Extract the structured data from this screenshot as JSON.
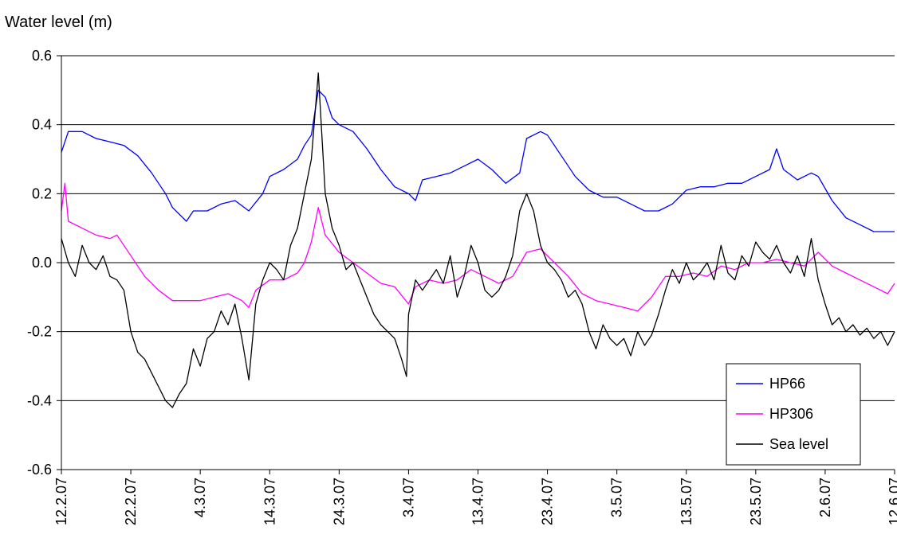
{
  "chart_data": {
    "type": "line",
    "title": "",
    "ylabel": "Water level (m)",
    "xlabel": "",
    "ylim": [
      -0.6,
      0.6
    ],
    "yticks": [
      0.6,
      0.4,
      0.2,
      0.0,
      -0.2,
      -0.4,
      -0.6
    ],
    "ytick_labels": [
      "0.6",
      "0.4",
      "0.2",
      "0.0",
      "-0.2",
      "-0.4",
      "-0.6"
    ],
    "xlim": [
      "2007-02-12",
      "2007-06-12"
    ],
    "xticks": [
      "2007-02-12",
      "2007-02-22",
      "2007-03-04",
      "2007-03-14",
      "2007-03-24",
      "2007-04-03",
      "2007-04-13",
      "2007-04-23",
      "2007-05-03",
      "2007-05-13",
      "2007-05-23",
      "2007-06-02",
      "2007-06-12"
    ],
    "xtick_labels": [
      "12.2.07",
      "22.2.07",
      "4.3.07",
      "14.3.07",
      "24.3.07",
      "3.4.07",
      "13.4.07",
      "23.4.07",
      "3.5.07",
      "13.5.07",
      "23.5.07",
      "2.6.07",
      "12.6.07"
    ],
    "grid": "horizontal",
    "legend_position": "bottom-right",
    "series": [
      {
        "name": "HP66",
        "color": "#0000ff",
        "points": [
          [
            "2007-02-12",
            0.32
          ],
          [
            "2007-02-13",
            0.38
          ],
          [
            "2007-02-15",
            0.38
          ],
          [
            "2007-02-17",
            0.36
          ],
          [
            "2007-02-19",
            0.35
          ],
          [
            "2007-02-21",
            0.34
          ],
          [
            "2007-02-23",
            0.31
          ],
          [
            "2007-02-25",
            0.26
          ],
          [
            "2007-02-27",
            0.2
          ],
          [
            "2007-02-28",
            0.16
          ],
          [
            "2007-03-02",
            0.12
          ],
          [
            "2007-03-03",
            0.15
          ],
          [
            "2007-03-05",
            0.15
          ],
          [
            "2007-03-07",
            0.17
          ],
          [
            "2007-03-09",
            0.18
          ],
          [
            "2007-03-11",
            0.15
          ],
          [
            "2007-03-13",
            0.2
          ],
          [
            "2007-03-14",
            0.25
          ],
          [
            "2007-03-16",
            0.27
          ],
          [
            "2007-03-18",
            0.3
          ],
          [
            "2007-03-19",
            0.34
          ],
          [
            "2007-03-20",
            0.37
          ],
          [
            "2007-03-21",
            0.5
          ],
          [
            "2007-03-22",
            0.48
          ],
          [
            "2007-03-23",
            0.42
          ],
          [
            "2007-03-24",
            0.4
          ],
          [
            "2007-03-26",
            0.38
          ],
          [
            "2007-03-28",
            0.33
          ],
          [
            "2007-03-30",
            0.27
          ],
          [
            "2007-04-01",
            0.22
          ],
          [
            "2007-04-03",
            0.2
          ],
          [
            "2007-04-04",
            0.18
          ],
          [
            "2007-04-05",
            0.24
          ],
          [
            "2007-04-07",
            0.25
          ],
          [
            "2007-04-09",
            0.26
          ],
          [
            "2007-04-11",
            0.28
          ],
          [
            "2007-04-13",
            0.3
          ],
          [
            "2007-04-15",
            0.27
          ],
          [
            "2007-04-17",
            0.23
          ],
          [
            "2007-04-19",
            0.26
          ],
          [
            "2007-04-20",
            0.36
          ],
          [
            "2007-04-22",
            0.38
          ],
          [
            "2007-04-23",
            0.37
          ],
          [
            "2007-04-25",
            0.31
          ],
          [
            "2007-04-27",
            0.25
          ],
          [
            "2007-04-29",
            0.21
          ],
          [
            "2007-05-01",
            0.19
          ],
          [
            "2007-05-03",
            0.19
          ],
          [
            "2007-05-05",
            0.17
          ],
          [
            "2007-05-07",
            0.15
          ],
          [
            "2007-05-09",
            0.15
          ],
          [
            "2007-05-11",
            0.17
          ],
          [
            "2007-05-13",
            0.21
          ],
          [
            "2007-05-15",
            0.22
          ],
          [
            "2007-05-17",
            0.22
          ],
          [
            "2007-05-19",
            0.23
          ],
          [
            "2007-05-21",
            0.23
          ],
          [
            "2007-05-23",
            0.25
          ],
          [
            "2007-05-25",
            0.27
          ],
          [
            "2007-05-26",
            0.33
          ],
          [
            "2007-05-27",
            0.27
          ],
          [
            "2007-05-29",
            0.24
          ],
          [
            "2007-05-31",
            0.26
          ],
          [
            "2007-06-01",
            0.25
          ],
          [
            "2007-06-03",
            0.18
          ],
          [
            "2007-06-05",
            0.13
          ],
          [
            "2007-06-07",
            0.11
          ],
          [
            "2007-06-09",
            0.09
          ],
          [
            "2007-06-12",
            0.09
          ]
        ]
      },
      {
        "name": "HP306",
        "color": "#ff00ff",
        "points": [
          [
            "2007-02-12",
            0.15
          ],
          [
            "2007-02-12.5",
            0.23
          ],
          [
            "2007-02-13",
            0.12
          ],
          [
            "2007-02-15",
            0.1
          ],
          [
            "2007-02-17",
            0.08
          ],
          [
            "2007-02-19",
            0.07
          ],
          [
            "2007-02-20",
            0.08
          ],
          [
            "2007-02-22",
            0.02
          ],
          [
            "2007-02-24",
            -0.04
          ],
          [
            "2007-02-26",
            -0.08
          ],
          [
            "2007-02-28",
            -0.11
          ],
          [
            "2007-03-02",
            -0.11
          ],
          [
            "2007-03-04",
            -0.11
          ],
          [
            "2007-03-06",
            -0.1
          ],
          [
            "2007-03-08",
            -0.09
          ],
          [
            "2007-03-10",
            -0.11
          ],
          [
            "2007-03-11",
            -0.13
          ],
          [
            "2007-03-12",
            -0.08
          ],
          [
            "2007-03-14",
            -0.05
          ],
          [
            "2007-03-16",
            -0.05
          ],
          [
            "2007-03-18",
            -0.03
          ],
          [
            "2007-03-19",
            0.0
          ],
          [
            "2007-03-20",
            0.06
          ],
          [
            "2007-03-21",
            0.16
          ],
          [
            "2007-03-22",
            0.08
          ],
          [
            "2007-03-24",
            0.03
          ],
          [
            "2007-03-26",
            0.0
          ],
          [
            "2007-03-28",
            -0.03
          ],
          [
            "2007-03-30",
            -0.06
          ],
          [
            "2007-04-01",
            -0.07
          ],
          [
            "2007-04-03",
            -0.12
          ],
          [
            "2007-04-04",
            -0.07
          ],
          [
            "2007-04-06",
            -0.05
          ],
          [
            "2007-04-08",
            -0.06
          ],
          [
            "2007-04-10",
            -0.05
          ],
          [
            "2007-04-12",
            -0.02
          ],
          [
            "2007-04-14",
            -0.04
          ],
          [
            "2007-04-16",
            -0.06
          ],
          [
            "2007-04-18",
            -0.04
          ],
          [
            "2007-04-20",
            0.03
          ],
          [
            "2007-04-22",
            0.04
          ],
          [
            "2007-04-24",
            0.0
          ],
          [
            "2007-04-26",
            -0.04
          ],
          [
            "2007-04-28",
            -0.09
          ],
          [
            "2007-04-30",
            -0.11
          ],
          [
            "2007-05-02",
            -0.12
          ],
          [
            "2007-05-04",
            -0.13
          ],
          [
            "2007-05-06",
            -0.14
          ],
          [
            "2007-05-08",
            -0.1
          ],
          [
            "2007-05-10",
            -0.04
          ],
          [
            "2007-05-12",
            -0.04
          ],
          [
            "2007-05-14",
            -0.03
          ],
          [
            "2007-05-16",
            -0.04
          ],
          [
            "2007-05-18",
            -0.01
          ],
          [
            "2007-05-20",
            -0.02
          ],
          [
            "2007-05-22",
            0.0
          ],
          [
            "2007-05-24",
            0.0
          ],
          [
            "2007-05-26",
            0.01
          ],
          [
            "2007-05-28",
            0.0
          ],
          [
            "2007-05-30",
            -0.01
          ],
          [
            "2007-06-01",
            0.03
          ],
          [
            "2007-06-03",
            -0.01
          ],
          [
            "2007-06-05",
            -0.03
          ],
          [
            "2007-06-07",
            -0.05
          ],
          [
            "2007-06-09",
            -0.07
          ],
          [
            "2007-06-11",
            -0.09
          ],
          [
            "2007-06-12",
            -0.06
          ]
        ]
      },
      {
        "name": "Sea level",
        "color": "#000000",
        "points": [
          [
            "2007-02-12",
            0.07
          ],
          [
            "2007-02-13",
            0.0
          ],
          [
            "2007-02-14",
            -0.04
          ],
          [
            "2007-02-15",
            0.05
          ],
          [
            "2007-02-16",
            0.0
          ],
          [
            "2007-02-17",
            -0.02
          ],
          [
            "2007-02-18",
            0.02
          ],
          [
            "2007-02-19",
            -0.04
          ],
          [
            "2007-02-20",
            -0.05
          ],
          [
            "2007-02-21",
            -0.08
          ],
          [
            "2007-02-22",
            -0.2
          ],
          [
            "2007-02-23",
            -0.26
          ],
          [
            "2007-02-24",
            -0.28
          ],
          [
            "2007-02-25",
            -0.32
          ],
          [
            "2007-02-26",
            -0.36
          ],
          [
            "2007-02-27",
            -0.4
          ],
          [
            "2007-02-28",
            -0.42
          ],
          [
            "2007-03-01",
            -0.38
          ],
          [
            "2007-03-02",
            -0.35
          ],
          [
            "2007-03-03",
            -0.25
          ],
          [
            "2007-03-04",
            -0.3
          ],
          [
            "2007-03-05",
            -0.22
          ],
          [
            "2007-03-06",
            -0.2
          ],
          [
            "2007-03-07",
            -0.14
          ],
          [
            "2007-03-08",
            -0.18
          ],
          [
            "2007-03-09",
            -0.12
          ],
          [
            "2007-03-10",
            -0.22
          ],
          [
            "2007-03-11",
            -0.34
          ],
          [
            "2007-03-12",
            -0.12
          ],
          [
            "2007-03-13",
            -0.05
          ],
          [
            "2007-03-14",
            0.0
          ],
          [
            "2007-03-15",
            -0.02
          ],
          [
            "2007-03-16",
            -0.05
          ],
          [
            "2007-03-17",
            0.05
          ],
          [
            "2007-03-18",
            0.1
          ],
          [
            "2007-03-19",
            0.2
          ],
          [
            "2007-03-20",
            0.3
          ],
          [
            "2007-03-21",
            0.55
          ],
          [
            "2007-03-22",
            0.2
          ],
          [
            "2007-03-23",
            0.1
          ],
          [
            "2007-03-24",
            0.05
          ],
          [
            "2007-03-25",
            -0.02
          ],
          [
            "2007-03-26",
            0.0
          ],
          [
            "2007-03-27",
            -0.05
          ],
          [
            "2007-03-28",
            -0.1
          ],
          [
            "2007-03-29",
            -0.15
          ],
          [
            "2007-03-30",
            -0.18
          ],
          [
            "2007-03-31",
            -0.2
          ],
          [
            "2007-04-01",
            -0.22
          ],
          [
            "2007-04-02",
            -0.28
          ],
          [
            "2007-04-02.7",
            -0.33
          ],
          [
            "2007-04-03",
            -0.15
          ],
          [
            "2007-04-04",
            -0.05
          ],
          [
            "2007-04-05",
            -0.08
          ],
          [
            "2007-04-06",
            -0.05
          ],
          [
            "2007-04-07",
            -0.02
          ],
          [
            "2007-04-08",
            -0.06
          ],
          [
            "2007-04-09",
            0.02
          ],
          [
            "2007-04-10",
            -0.1
          ],
          [
            "2007-04-11",
            -0.04
          ],
          [
            "2007-04-12",
            0.05
          ],
          [
            "2007-04-13",
            0.0
          ],
          [
            "2007-04-14",
            -0.08
          ],
          [
            "2007-04-15",
            -0.1
          ],
          [
            "2007-04-16",
            -0.08
          ],
          [
            "2007-04-17",
            -0.04
          ],
          [
            "2007-04-18",
            0.02
          ],
          [
            "2007-04-19",
            0.15
          ],
          [
            "2007-04-20",
            0.2
          ],
          [
            "2007-04-21",
            0.15
          ],
          [
            "2007-04-22",
            0.05
          ],
          [
            "2007-04-23",
            0.0
          ],
          [
            "2007-04-24",
            -0.02
          ],
          [
            "2007-04-25",
            -0.05
          ],
          [
            "2007-04-26",
            -0.1
          ],
          [
            "2007-04-27",
            -0.08
          ],
          [
            "2007-04-28",
            -0.12
          ],
          [
            "2007-04-29",
            -0.2
          ],
          [
            "2007-04-30",
            -0.25
          ],
          [
            "2007-05-01",
            -0.18
          ],
          [
            "2007-05-02",
            -0.22
          ],
          [
            "2007-05-03",
            -0.24
          ],
          [
            "2007-05-04",
            -0.22
          ],
          [
            "2007-05-05",
            -0.27
          ],
          [
            "2007-05-06",
            -0.2
          ],
          [
            "2007-05-07",
            -0.24
          ],
          [
            "2007-05-08",
            -0.21
          ],
          [
            "2007-05-09",
            -0.15
          ],
          [
            "2007-05-10",
            -0.08
          ],
          [
            "2007-05-11",
            -0.02
          ],
          [
            "2007-05-12",
            -0.06
          ],
          [
            "2007-05-13",
            0.0
          ],
          [
            "2007-05-14",
            -0.05
          ],
          [
            "2007-05-15",
            -0.03
          ],
          [
            "2007-05-16",
            0.0
          ],
          [
            "2007-05-17",
            -0.05
          ],
          [
            "2007-05-18",
            0.05
          ],
          [
            "2007-05-19",
            -0.03
          ],
          [
            "2007-05-20",
            -0.05
          ],
          [
            "2007-05-21",
            0.02
          ],
          [
            "2007-05-22",
            -0.01
          ],
          [
            "2007-05-23",
            0.06
          ],
          [
            "2007-05-24",
            0.03
          ],
          [
            "2007-05-25",
            0.01
          ],
          [
            "2007-05-26",
            0.05
          ],
          [
            "2007-05-27",
            0.0
          ],
          [
            "2007-05-28",
            -0.03
          ],
          [
            "2007-05-29",
            0.02
          ],
          [
            "2007-05-30",
            -0.04
          ],
          [
            "2007-05-31",
            0.07
          ],
          [
            "2007-06-01",
            -0.05
          ],
          [
            "2007-06-02",
            -0.12
          ],
          [
            "2007-06-03",
            -0.18
          ],
          [
            "2007-06-04",
            -0.16
          ],
          [
            "2007-06-05",
            -0.2
          ],
          [
            "2007-06-06",
            -0.18
          ],
          [
            "2007-06-07",
            -0.21
          ],
          [
            "2007-06-08",
            -0.19
          ],
          [
            "2007-06-09",
            -0.22
          ],
          [
            "2007-06-10",
            -0.2
          ],
          [
            "2007-06-11",
            -0.24
          ],
          [
            "2007-06-12",
            -0.2
          ]
        ]
      }
    ]
  }
}
